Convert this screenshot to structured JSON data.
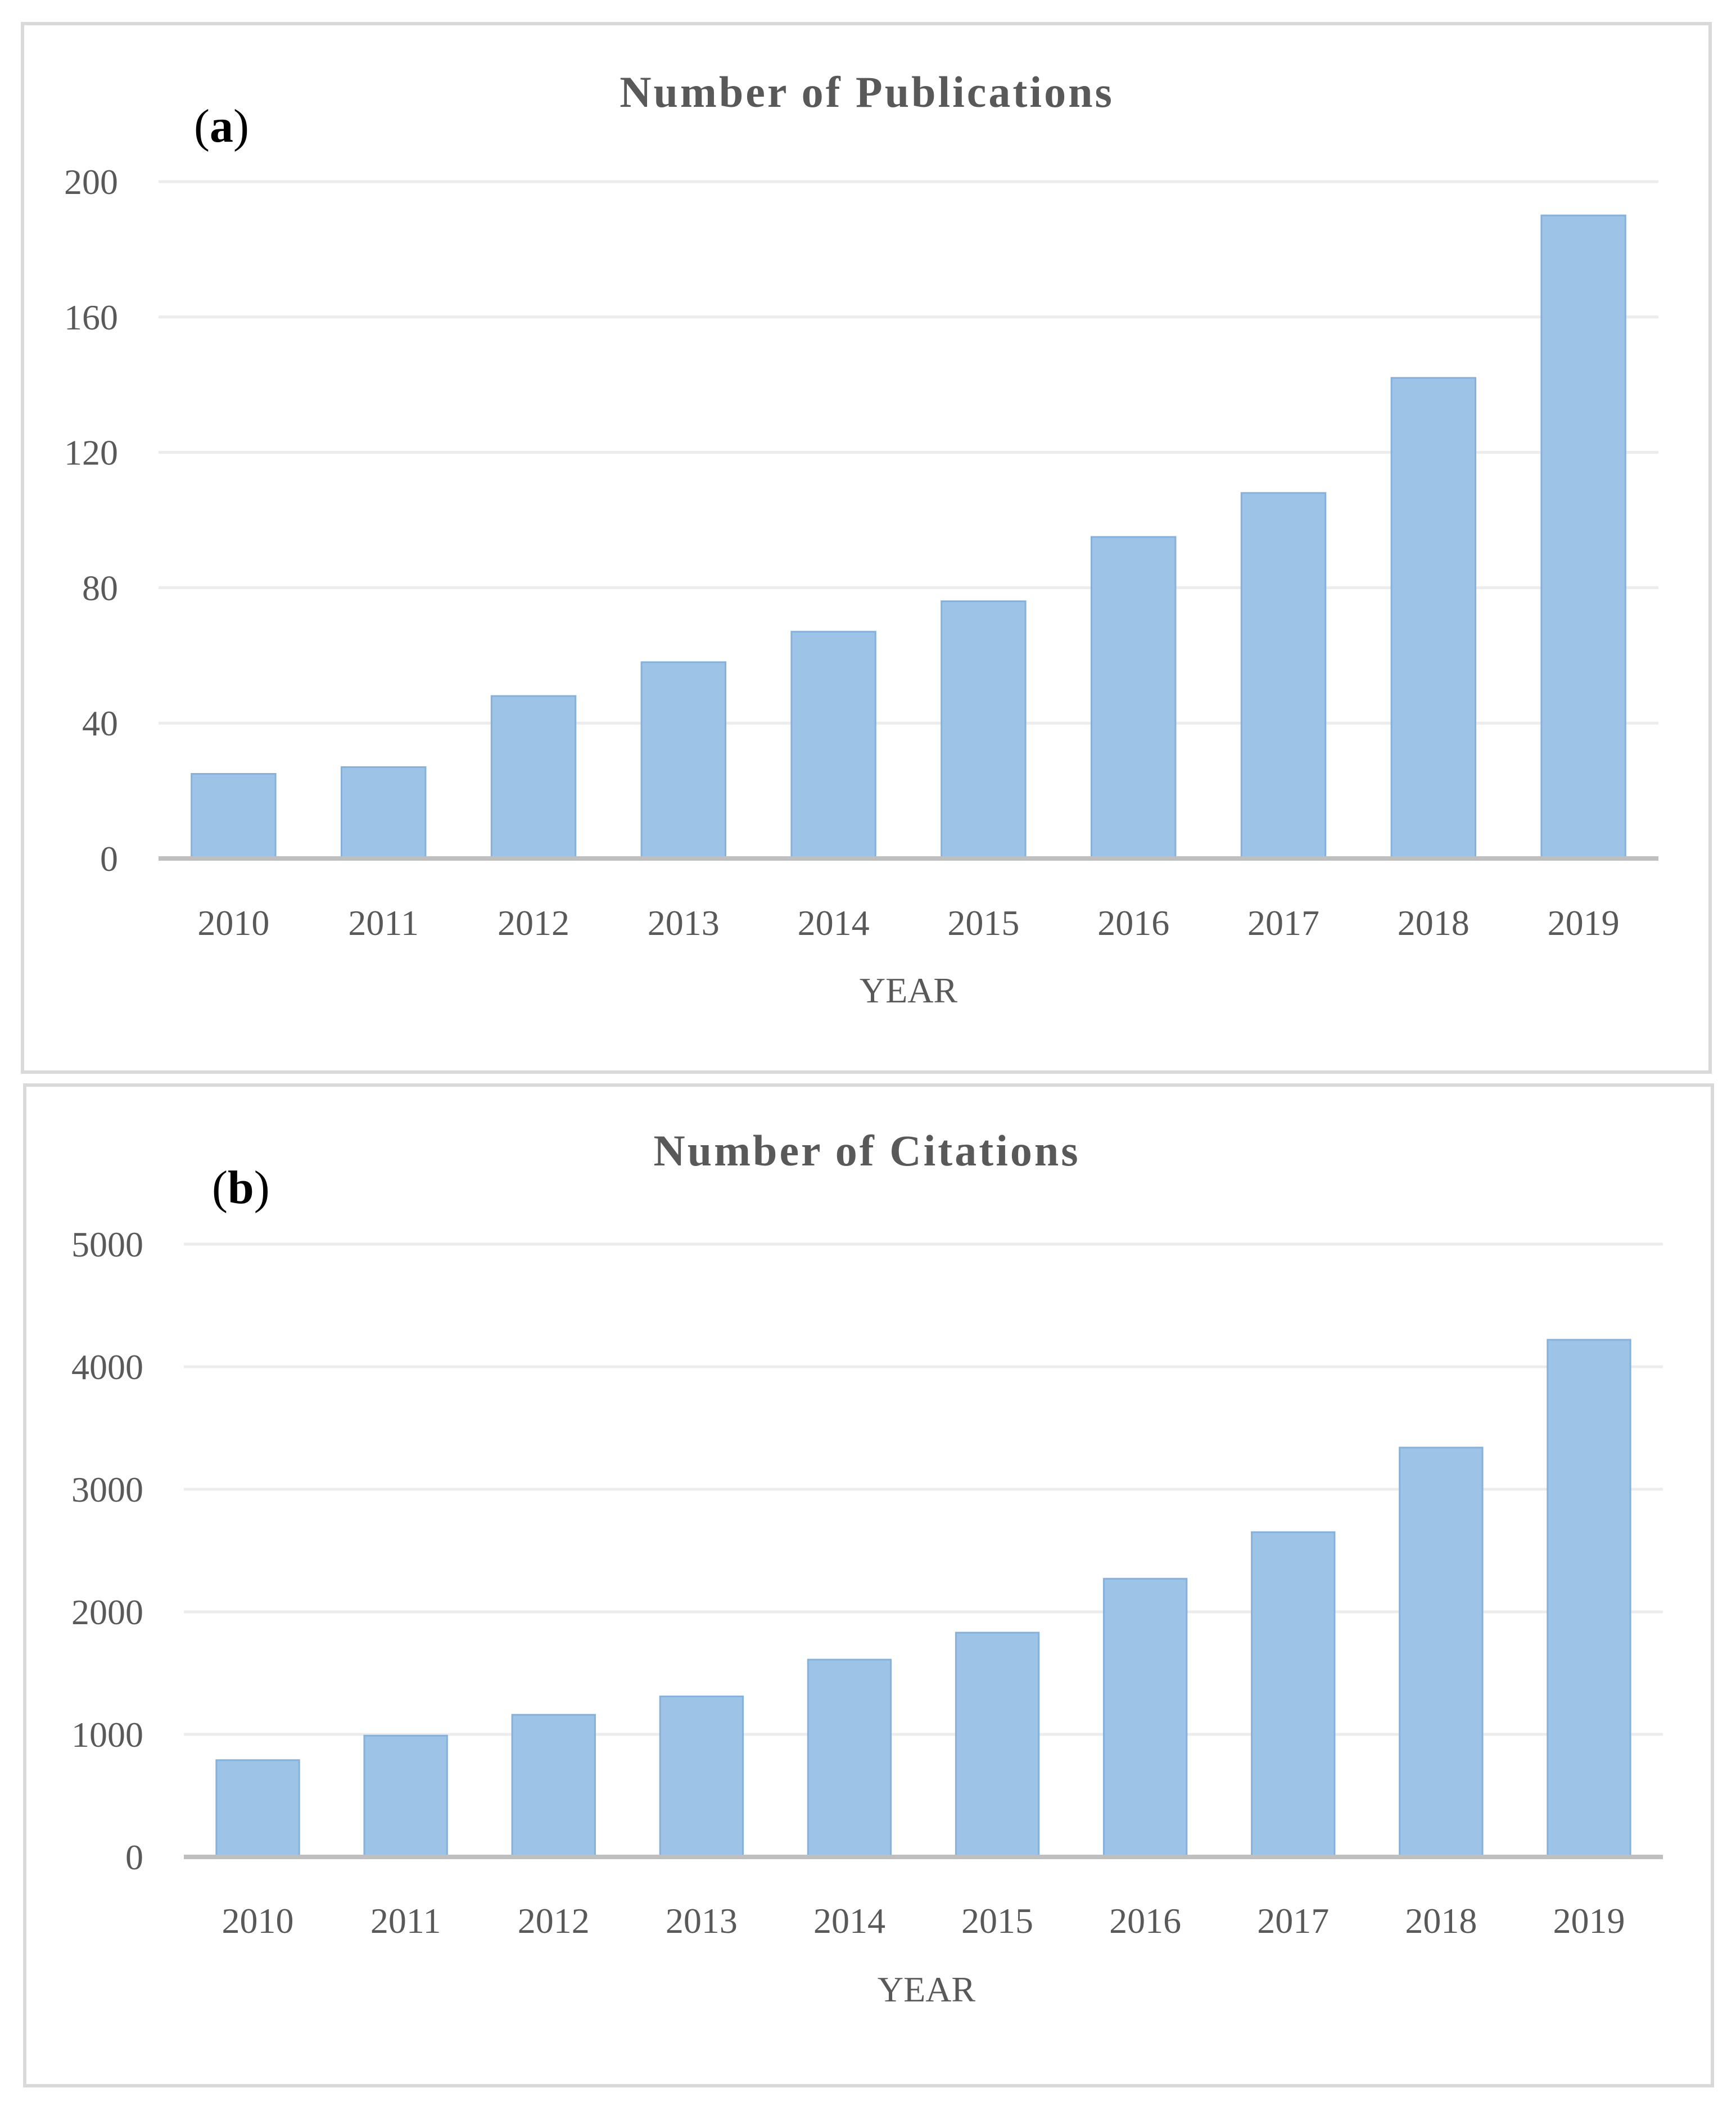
{
  "colors": {
    "bar": "#9dc3e6",
    "bar_edge": "#86b1da",
    "text": "#595959",
    "grid": "#ececec",
    "axis": "#bfbfbf",
    "frame": "#d9d9d9"
  },
  "chart_data": [
    {
      "type": "bar",
      "panel_label": "(a)",
      "title": "Number of Publications",
      "xlabel": "YEAR",
      "ylabel": "",
      "categories": [
        "2010",
        "2011",
        "2012",
        "2013",
        "2014",
        "2015",
        "2016",
        "2017",
        "2018",
        "2019"
      ],
      "values": [
        25,
        27,
        48,
        58,
        67,
        76,
        95,
        108,
        142,
        190
      ],
      "ylim": [
        0,
        200
      ],
      "yticks": [
        0,
        40,
        80,
        120,
        160,
        200
      ],
      "ytick_labels": [
        "0",
        "40",
        "80",
        "120",
        "160",
        "200"
      ],
      "grid": true,
      "legend": "none"
    },
    {
      "type": "bar",
      "panel_label": "(b)",
      "title": "Number of Citations",
      "xlabel": "YEAR",
      "ylabel": "",
      "categories": [
        "2010",
        "2011",
        "2012",
        "2013",
        "2014",
        "2015",
        "2016",
        "2017",
        "2018",
        "2019"
      ],
      "values": [
        790,
        990,
        1160,
        1310,
        1610,
        1830,
        2270,
        2650,
        3340,
        4220
      ],
      "ylim": [
        0,
        5000
      ],
      "yticks": [
        0,
        1000,
        2000,
        3000,
        4000,
        5000
      ],
      "ytick_labels": [
        "0",
        "1000",
        "2000",
        "3000",
        "4000",
        "5000"
      ],
      "grid": true,
      "legend": "none"
    }
  ]
}
